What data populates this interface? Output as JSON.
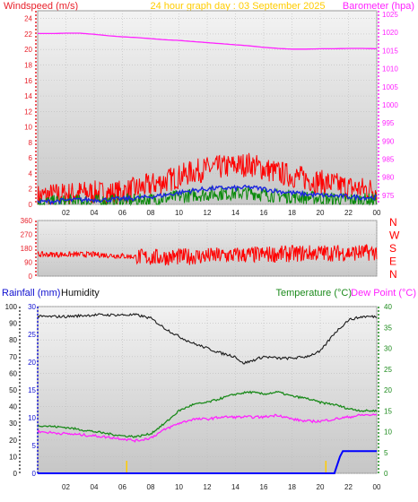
{
  "header": {
    "left_title": "Windspeed (m/s)",
    "center_title": "24 hour graph day : 03 September 2025",
    "right_title": "Barometer (hpa)"
  },
  "colors": {
    "background": "#ffffff",
    "plot_bg_top": "#f2f2f2",
    "plot_bg_bottom": "#c9c9c9",
    "wind_axis": "#e8202a",
    "wind_gust": "#ff0000",
    "wind_avg": "#1b24e0",
    "wind_speed": "#0a8a0a",
    "baro": "#ff22ff",
    "title_center": "#ffcc00",
    "direction": "#ff0000",
    "rain_axis": "#1010d0",
    "humidity_line": "#1a1a1a",
    "temp": "#1b8a1b",
    "dewpoint": "#ff22ff",
    "rain_line": "#0000ff",
    "marker": "#ffcc00"
  },
  "x_ticks": [
    "02",
    "04",
    "06",
    "08",
    "10",
    "12",
    "14",
    "16",
    "18",
    "20",
    "22",
    "00"
  ],
  "chart_data": [
    {
      "type": "line",
      "id": "wind-baro",
      "x": "hour of day (0-24)",
      "y_left_ticks": [
        "0",
        "2",
        "4",
        "6",
        "8",
        "10",
        "12",
        "14",
        "16",
        "18",
        "20",
        "22",
        "24"
      ],
      "ylim_left": [
        0,
        25
      ],
      "y_right_ticks": [
        "975",
        "980",
        "985",
        "990",
        "995",
        "1000",
        "1005",
        "1010",
        "1015",
        "1020",
        "1025"
      ],
      "ylim_right": [
        972.5,
        1026
      ],
      "series": [
        {
          "key": "gust",
          "axis": "left",
          "x": [
            0,
            1,
            2,
            3,
            4,
            5,
            6,
            7,
            8,
            9,
            10,
            11,
            12,
            13,
            14,
            15,
            16,
            17,
            18,
            19,
            20,
            21,
            22,
            23,
            24
          ],
          "values": [
            1,
            1.2,
            1.3,
            1.5,
            1.5,
            1.4,
            1.6,
            2,
            2.5,
            3,
            3.6,
            4.2,
            4.6,
            4.8,
            5,
            5.2,
            4.6,
            4.1,
            3.7,
            3.3,
            2.9,
            2.6,
            2.2,
            2,
            1.9
          ]
        },
        {
          "key": "average",
          "axis": "left",
          "x": [
            0,
            1,
            2,
            3,
            4,
            5,
            6,
            7,
            8,
            9,
            10,
            11,
            12,
            13,
            14,
            15,
            16,
            17,
            18,
            19,
            20,
            21,
            22,
            23,
            24
          ],
          "values": [
            0.3,
            0.4,
            0.5,
            0.6,
            0.6,
            0.6,
            0.7,
            0.8,
            1,
            1.2,
            1.5,
            1.8,
            2,
            2.1,
            2.1,
            2.2,
            2,
            1.7,
            1.5,
            1.3,
            1.2,
            1.1,
            1,
            0.9,
            0.9
          ]
        },
        {
          "key": "speed",
          "axis": "left",
          "x": [
            0,
            1,
            2,
            3,
            4,
            5,
            6,
            7,
            8,
            9,
            10,
            11,
            12,
            13,
            14,
            15,
            16,
            17,
            18,
            19,
            20,
            21,
            22,
            23,
            24
          ],
          "values": [
            0.2,
            0.3,
            0.35,
            0.4,
            0.4,
            0.4,
            0.45,
            0.5,
            0.6,
            0.8,
            1,
            1.2,
            1.3,
            1.4,
            1.4,
            1.5,
            1.3,
            1.1,
            1,
            0.9,
            0.8,
            0.7,
            0.6,
            0.6,
            0.6
          ]
        },
        {
          "key": "barometer",
          "axis": "right",
          "x": [
            0,
            1,
            2,
            3,
            4,
            5,
            6,
            7,
            8,
            9,
            10,
            11,
            12,
            13,
            14,
            15,
            16,
            17,
            18,
            19,
            20,
            21,
            22,
            23,
            24
          ],
          "values": [
            1019.7,
            1019.7,
            1019.8,
            1019.8,
            1019.5,
            1019.1,
            1018.8,
            1018.6,
            1018.3,
            1018.0,
            1017.8,
            1017.5,
            1017.2,
            1016.9,
            1016.6,
            1016.3,
            1015.9,
            1015.6,
            1015.4,
            1015.4,
            1015.5,
            1015.5,
            1015.6,
            1015.6,
            1015.5
          ]
        }
      ],
      "jitter": {
        "gust": 1.6,
        "average": 0.3,
        "speed": 0.9,
        "barometer": 0
      }
    },
    {
      "type": "line",
      "id": "direction",
      "y_left_ticks": [
        "0",
        "90",
        "180",
        "270",
        "360"
      ],
      "y_right_ticks": [
        "N",
        "E",
        "S",
        "W",
        "N"
      ],
      "ylim": [
        0,
        360
      ],
      "series": [
        {
          "key": "direction",
          "x": [
            0,
            2,
            4,
            6,
            8,
            10,
            12,
            14,
            16,
            18,
            20,
            22,
            24
          ],
          "values": [
            140,
            140,
            140,
            130,
            120,
            125,
            130,
            135,
            140,
            145,
            150,
            150,
            155
          ]
        }
      ],
      "jitter": {
        "direction": 55
      }
    },
    {
      "type": "line",
      "id": "rain-humidity-temp",
      "header_left": "Rainfall (mm)",
      "header_mid": "Humidity",
      "header_temp": "Temperature (°C)",
      "header_dew": "Dew Point (°C)",
      "y_humidity_ticks": [
        "0",
        "10",
        "20",
        "30",
        "40",
        "50",
        "60",
        "70",
        "80",
        "90",
        "100"
      ],
      "y_rain_ticks": [
        "0",
        "5",
        "10",
        "15",
        "20",
        "25",
        "30"
      ],
      "y_temp_ticks": [
        "0",
        "5",
        "10",
        "15",
        "20",
        "25",
        "30",
        "35",
        "40"
      ],
      "ylim_humidity": [
        0,
        100
      ],
      "ylim_rain": [
        0,
        30
      ],
      "ylim_temp": [
        0,
        40
      ],
      "series": [
        {
          "key": "humidity",
          "axis": "humidity",
          "x": [
            0,
            2,
            4,
            6,
            7,
            8,
            9,
            10,
            11,
            12,
            13,
            14,
            14.5,
            15,
            16,
            17,
            18,
            19,
            20,
            21,
            22,
            23,
            24
          ],
          "values": [
            94,
            94,
            95,
            95,
            95,
            93,
            87,
            82,
            78,
            75,
            72,
            70,
            66,
            67,
            70,
            69,
            69,
            70,
            73,
            84,
            92,
            94,
            94
          ]
        },
        {
          "key": "temperature",
          "axis": "temp",
          "x": [
            0,
            2,
            4,
            6,
            7,
            8,
            9,
            10,
            11,
            12,
            13,
            14,
            15,
            16,
            17,
            18,
            19,
            20,
            21,
            22,
            23,
            24
          ],
          "values": [
            11.5,
            11,
            10,
            9,
            8.8,
            9.5,
            12,
            15,
            16.5,
            17,
            18,
            19,
            19.5,
            19,
            19.5,
            18.5,
            18,
            17,
            16.5,
            15.5,
            15,
            15
          ]
        },
        {
          "key": "dewpoint",
          "axis": "temp",
          "x": [
            0,
            2,
            4,
            6,
            7,
            8,
            9,
            10,
            11,
            12,
            13,
            14,
            15,
            16,
            17,
            18,
            19,
            20,
            21,
            22,
            23,
            24
          ],
          "values": [
            10,
            9.5,
            9,
            8.3,
            7.8,
            8.5,
            10.5,
            12,
            13,
            13,
            13.5,
            13.5,
            13.5,
            13.5,
            14,
            13,
            12.5,
            12.5,
            13,
            13.5,
            14,
            14
          ]
        },
        {
          "key": "rainfall",
          "axis": "rain",
          "x": [
            0,
            21,
            21.4,
            21.6,
            23.8,
            24
          ],
          "values": [
            0,
            0,
            3,
            4,
            4,
            4
          ]
        }
      ],
      "jitter": {
        "humidity": 0.8,
        "temperature": 0.25,
        "dewpoint": 0.3,
        "rainfall": 0
      },
      "markers_hour": [
        6.3,
        20.4
      ]
    }
  ]
}
